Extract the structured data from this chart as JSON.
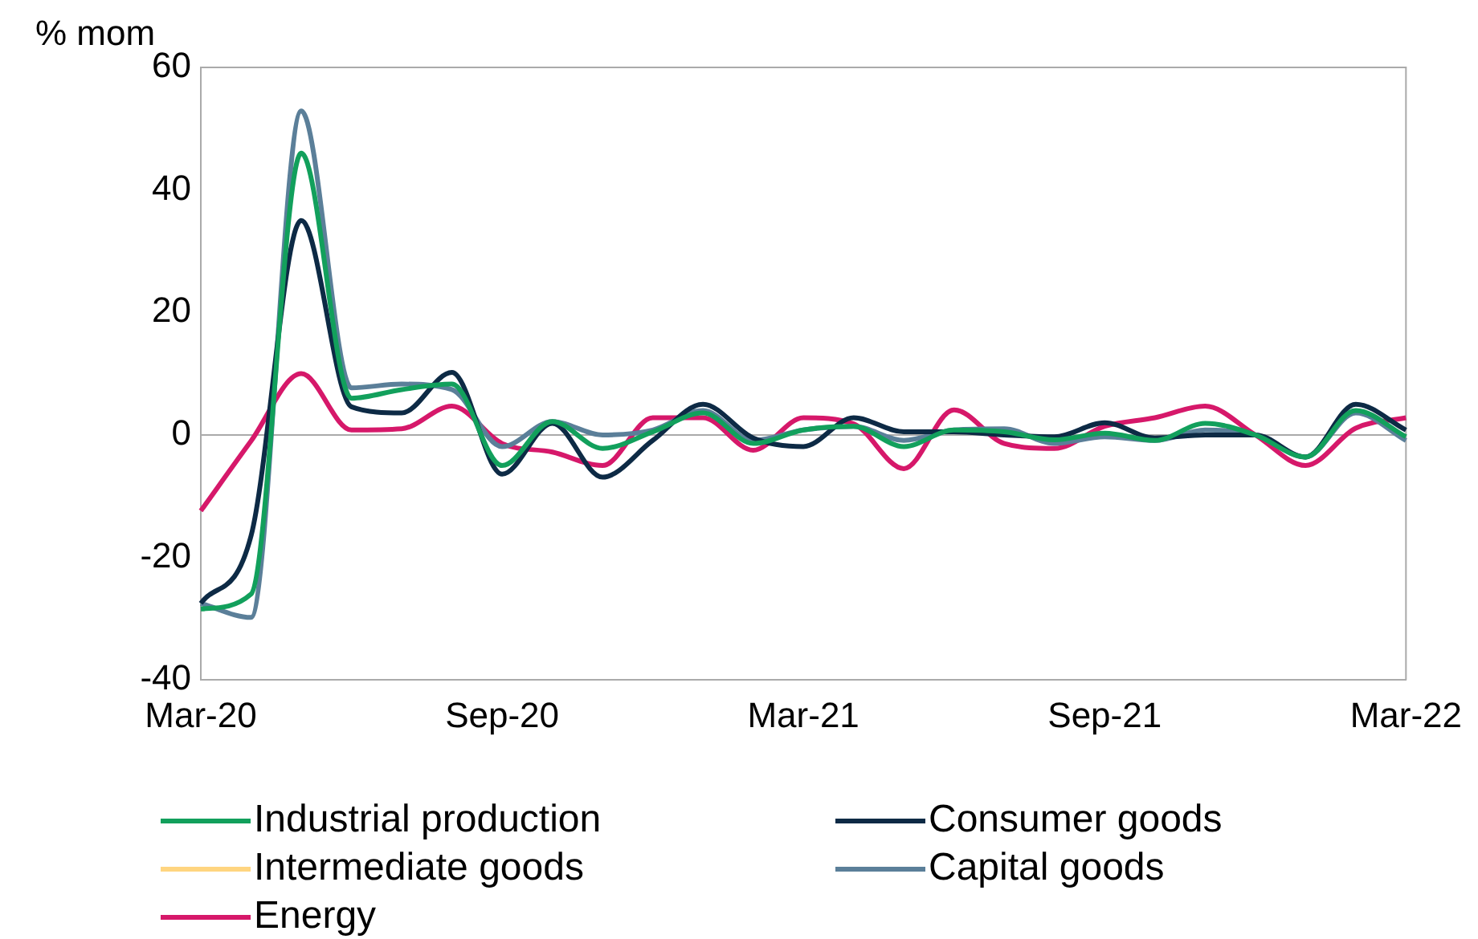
{
  "chart_data": {
    "type": "line",
    "ylabel": "% mom",
    "categories": [
      "Mar-20",
      null,
      null,
      null,
      null,
      null,
      "Sep-20",
      null,
      null,
      null,
      null,
      null,
      "Mar-21",
      null,
      null,
      null,
      null,
      null,
      "Sep-21",
      null,
      null,
      null,
      null,
      null,
      "Mar-22"
    ],
    "ylim": [
      -40,
      60
    ],
    "yticks": [
      -40,
      -20,
      0,
      20,
      40,
      60
    ],
    "grid": false,
    "ref_lines": [
      {
        "axis": "y",
        "value": 0,
        "color": "#aaaaaa"
      }
    ],
    "legend": "bottom",
    "line_style": "solid",
    "marker": "none",
    "series": [
      {
        "name": "Industrial production",
        "color": "#12a05c",
        "values": [
          -28.4,
          -26,
          46,
          6,
          7.4,
          8.3,
          -5,
          2.2,
          -2.2,
          0.5,
          3.6,
          -1.4,
          0.8,
          1.4,
          -1.9,
          0.8,
          0.5,
          -0.8,
          0.3,
          -0.9,
          1.9,
          0,
          -3.6,
          4,
          -0.3
        ]
      },
      {
        "name": "Consumer goods",
        "color": "#0d2a45",
        "values": [
          -27.5,
          -16.5,
          35,
          4.6,
          3.6,
          10.2,
          -6.4,
          1.9,
          -6.9,
          -0.9,
          5,
          -0.5,
          -1.9,
          2.8,
          0.5,
          0.5,
          0,
          -0.3,
          2,
          -0.5,
          0,
          0,
          -3.6,
          5,
          0.8
        ]
      },
      {
        "name": "Intermediate goods",
        "color": "#ffd580",
        "values": [
          null,
          null,
          null,
          null,
          null,
          null,
          null,
          null,
          null,
          null,
          null,
          null,
          null,
          null,
          null,
          null,
          null,
          null,
          null,
          null,
          null,
          null,
          null,
          null,
          null
        ]
      },
      {
        "name": "Capital goods",
        "color": "#5b7f99",
        "values": [
          -27.5,
          -29.8,
          52.9,
          7.7,
          8.3,
          7.4,
          -1.9,
          2.2,
          0,
          0.8,
          4,
          -0.9,
          0.8,
          1.4,
          -0.9,
          0.8,
          1,
          -1.4,
          -0.3,
          -0.9,
          0.8,
          0,
          -3.6,
          3.6,
          -0.9
        ]
      },
      {
        "name": "Energy",
        "color": "#d6186a",
        "values": [
          -12.4,
          -1,
          10,
          0.8,
          1,
          4.7,
          -1.4,
          -2.8,
          -5,
          2.8,
          2.8,
          -2.5,
          2.8,
          1.8,
          -5.5,
          4.1,
          -1.4,
          -2.2,
          1.4,
          2.8,
          4.7,
          0,
          -5,
          1.1,
          2.8
        ]
      }
    ]
  }
}
